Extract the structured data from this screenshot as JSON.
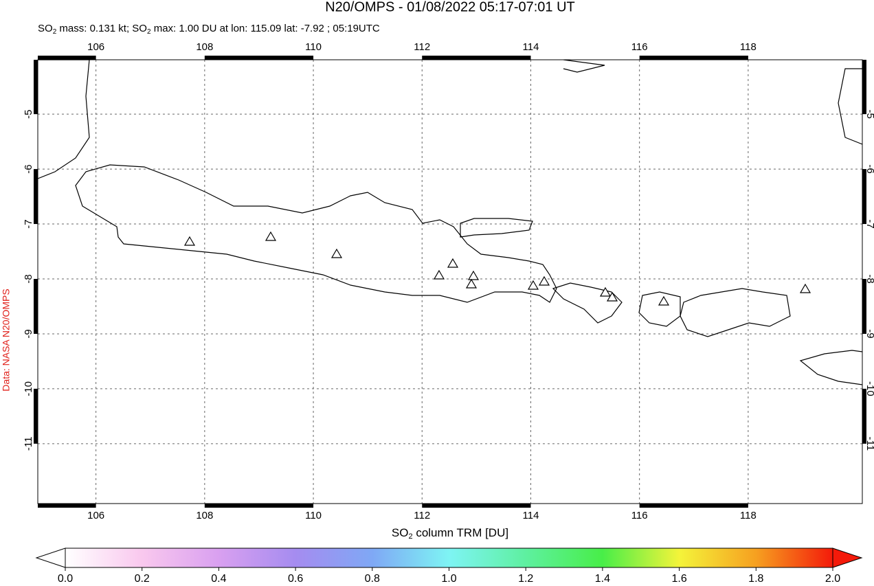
{
  "chart_data": {
    "type": "map",
    "title": "N20/OMPS - 01/08/2022 05:17-07:01 UT",
    "subtitle": [
      "SO",
      "2",
      " mass: 0.131 kt; SO",
      "2",
      " max: 1.00 DU at lon: 115.09 lat: -7.92 ; 05:19UTC"
    ],
    "xlabel": [
      "SO",
      "2",
      " column TRM [DU]"
    ],
    "source": "Data: NASA N20/OMPS",
    "xlim": [
      104.93,
      120.1
    ],
    "ylim": [
      -12.09,
      -4.01
    ],
    "xticks": [
      106,
      108,
      110,
      112,
      114,
      116,
      118
    ],
    "yticks": [
      -5,
      -6,
      -7,
      -8,
      -9,
      -10,
      -11
    ],
    "grid": true,
    "colorbar": {
      "lim": [
        0,
        2
      ],
      "ticks": [
        {
          "value": 0,
          "label": "0.0"
        },
        {
          "value": 0.2,
          "label": "0.2"
        },
        {
          "value": 0.4,
          "label": "0.4"
        },
        {
          "value": 0.6,
          "label": "0.6"
        },
        {
          "value": 0.8,
          "label": "0.8"
        },
        {
          "value": 1,
          "label": "1.0"
        },
        {
          "value": 1.2,
          "label": "1.2"
        },
        {
          "value": 1.4,
          "label": "1.4"
        },
        {
          "value": 1.6,
          "label": "1.6"
        },
        {
          "value": 1.8,
          "label": "1.8"
        },
        {
          "value": 2,
          "label": "2.0"
        }
      ],
      "colors": [
        "#ffffff",
        "#f9c8ee",
        "#d9a0f0",
        "#a58cf0",
        "#7fa8f5",
        "#7ef4f4",
        "#5ef0a0",
        "#48ee48",
        "#f4f43a",
        "#f6a020",
        "#f41a0a"
      ]
    }
  }
}
